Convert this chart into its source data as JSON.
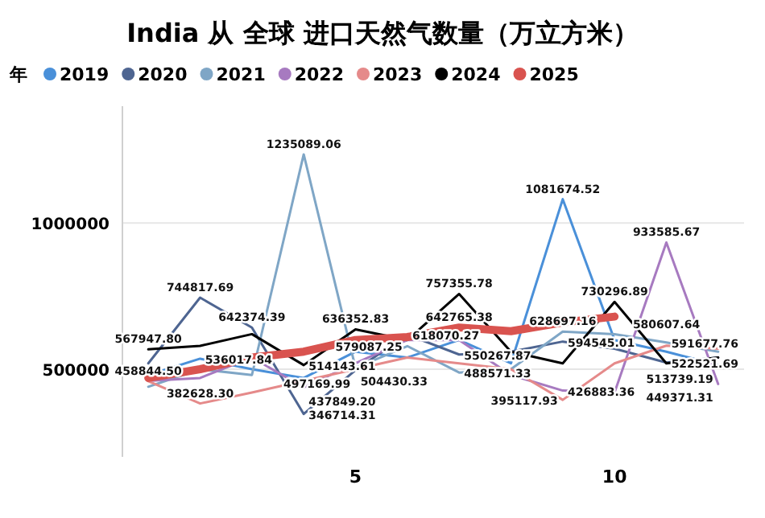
{
  "chart_data": {
    "type": "line",
    "title": "India 从 全球 进口天然气数量（万立方米）",
    "legend_title": "年",
    "legend": "top left",
    "grid": "y",
    "marker": "none",
    "line_style": "solid",
    "x": [
      1,
      2,
      3,
      4,
      5,
      6,
      7,
      8,
      9,
      10,
      11,
      12
    ],
    "xlim": [
      0.5,
      12.5
    ],
    "xticks": [
      5,
      10
    ],
    "ylim": [
      200000,
      1400000
    ],
    "yticks": [
      500000,
      1000000
    ],
    "series": [
      {
        "name": "2019",
        "color": "#4a90d9",
        "values": [
          480000,
          536017.84,
          500000,
          470000,
          560000,
          540000,
          600000,
          520000,
          1081674.52,
          600000,
          560000,
          513739.19
        ],
        "value_labels": [
          null,
          "536017.84",
          null,
          null,
          null,
          null,
          null,
          null,
          "1081674.52",
          null,
          null,
          "513739.19"
        ]
      },
      {
        "name": "2020",
        "color": "#4e6591",
        "values": [
          520000,
          744817.69,
          642374.39,
          346714.31,
          497169.99,
          618070.27,
          550267.87,
          560000,
          594545.01,
          570000,
          522521.69,
          540000
        ],
        "value_labels": [
          null,
          "744817.69",
          "642374.39",
          "346714.31",
          "497169.99",
          "618070.27",
          "550267.87",
          null,
          "594545.01",
          null,
          "522521.69",
          null
        ]
      },
      {
        "name": "2021",
        "color": "#7fa6c6",
        "values": [
          440000,
          500000,
          480000,
          1235089.06,
          504430.33,
          579087.25,
          488571.33,
          500000,
          628697.16,
          620000,
          591677.76,
          560000
        ],
        "value_labels": [
          null,
          null,
          null,
          "1235089.06",
          "504430.33",
          "579087.25",
          "488571.33",
          null,
          "628697.16",
          null,
          "591677.76",
          null
        ]
      },
      {
        "name": "2022",
        "color": "#a77ac0",
        "values": [
          460000,
          470000,
          540000,
          437849.2,
          520000,
          600000,
          600000,
          480000,
          426883.36,
          420000,
          933585.67,
          449371.31
        ],
        "value_labels": [
          null,
          null,
          null,
          "437849.20",
          null,
          null,
          null,
          null,
          "426883.36",
          null,
          "933585.67",
          "449371.31"
        ]
      },
      {
        "name": "2023",
        "color": "#e58a8a",
        "values": [
          458844.5,
          382628.3,
          420000,
          460000,
          500000,
          540000,
          520000,
          500000,
          395117.93,
          520000,
          580607.64,
          570000
        ],
        "value_labels": [
          "458844.50",
          "382628.30",
          null,
          null,
          null,
          null,
          null,
          null,
          "395117.93",
          null,
          "580607.64",
          null
        ]
      },
      {
        "name": "2024",
        "color": "#000000",
        "values": [
          567947.8,
          580000,
          620000,
          514143.61,
          636352.83,
          600000,
          757355.78,
          560000,
          520000,
          730296.89,
          520000,
          540000
        ],
        "value_labels": [
          "567947.80",
          null,
          null,
          "514143.61",
          "636352.83",
          null,
          "757355.78",
          null,
          null,
          "730296.89",
          null,
          null
        ]
      },
      {
        "name": "2025",
        "color": "#d9534f",
        "values": [
          470000,
          500000,
          540000,
          560000,
          600000,
          610000,
          642765.38,
          630000,
          660000,
          680000,
          null,
          null
        ],
        "value_labels": [
          null,
          null,
          null,
          null,
          null,
          null,
          "642765.38",
          null,
          null,
          null,
          null,
          null
        ]
      }
    ]
  }
}
